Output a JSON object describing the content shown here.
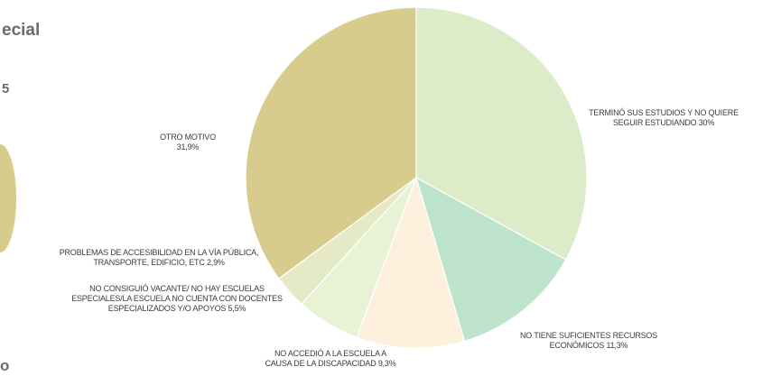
{
  "fragments": {
    "title_partial": "ecial",
    "digit_partial": "5",
    "bottom_partial": "o"
  },
  "chart_data": {
    "type": "pie",
    "title": "",
    "start": "12 o'clock, clockwise",
    "slices": [
      {
        "name": "TERMINÓ SUS ESTUDIOS Y NO QUIERE SEGUIR ESTUDIANDO",
        "value": 30.0,
        "color": "#dcecc9",
        "label_lines": [
          "TERMINÓ SUS ESTUDIOS Y NO QUIERE",
          "SEGUIR ESTUDIANDO 30%"
        ]
      },
      {
        "name": "NO TIENE SUFICIENTES RECURSOS ECONÓMICOS",
        "value": 11.3,
        "color": "#bde3cb",
        "label_lines": [
          "NO TIENE SUFICIENTES RECURSOS",
          "ECONÓMICOS 11,3%"
        ]
      },
      {
        "name": "NO ACCEDIÓ A LA ESCUELA A CAUSA DE LA DISCAPACIDAD",
        "value": 9.3,
        "color": "#fdf0dc",
        "label_lines": [
          "NO ACCEDIÓ A LA ESCUELA A",
          "CAUSA DE LA DISCAPACIDAD 9,3%"
        ]
      },
      {
        "name": "NO CONSIGUIÓ VACANTE/ NO HAY ESCUELAS ESPECIALES/LA ESCUELA NO CUENTA CON DOCENTES ESPECIALIZADOS Y/O APOYOS",
        "value": 5.5,
        "color": "#e8f3d6",
        "label_lines": [
          "NO CONSIGUIÓ VACANTE/ NO HAY ESCUELAS",
          "ESPECIALES/LA ESCUELA NO CUENTA CON DOCENTES",
          "ESPECIALIZADOS Y/O APOYOS 5,5%"
        ]
      },
      {
        "name": "PROBLEMAS DE ACCESIBILIDAD EN LA VÍA PÚBLICA, TRANSPORTE, EDIFICIO, ETC",
        "value": 2.9,
        "color": "#e6e9c6",
        "label_lines": [
          "PROBLEMAS DE ACCESIBILIDAD EN LA VÍA PÚBLICA,",
          "TRANSPORTE, EDIFICIO, ETC 2,9%"
        ]
      },
      {
        "name": "OTRO MOTIVO",
        "value": 31.9,
        "color": "#d8cc8c",
        "label_lines": [
          "OTRO MOTIVO",
          "31,9%"
        ]
      }
    ]
  }
}
